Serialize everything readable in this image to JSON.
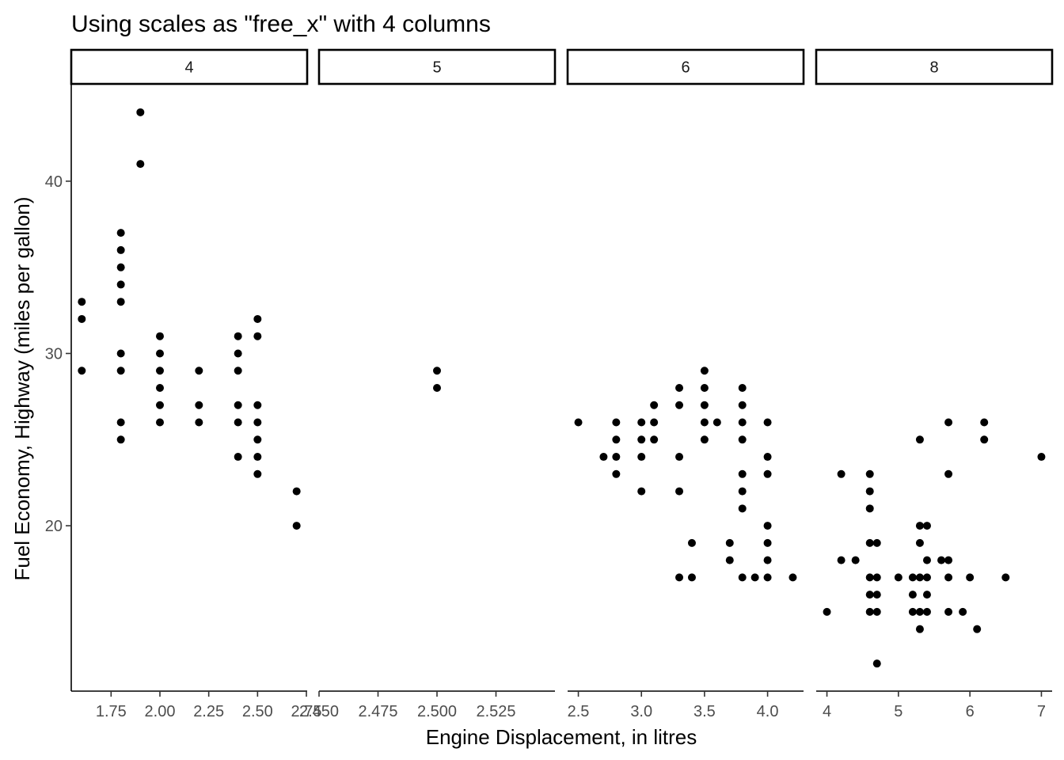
{
  "chart_data": {
    "type": "scatter",
    "title": "Using scales as \"free_x\" with 4 columns",
    "xlabel": "Engine Displacement, in litres",
    "ylabel": "Fuel Economy, Highway (miles per gallon)",
    "facet_variable": "cyl",
    "scales": "free_x",
    "ncol": 4,
    "ylim": [
      10.4,
      45.6
    ],
    "y_ticks": [
      20,
      30,
      40
    ],
    "y_tick_labels": [
      "20",
      "30",
      "40"
    ],
    "panels": [
      {
        "strip_label": "4",
        "xlim": [
          1.546,
          2.754
        ],
        "x_ticks": [
          1.75,
          2.0,
          2.25,
          2.5,
          2.75
        ],
        "x_tick_labels": [
          "1.75",
          "2.00",
          "2.25",
          "2.50",
          "2.75"
        ],
        "points": [
          [
            1.6,
            33
          ],
          [
            1.6,
            32
          ],
          [
            1.6,
            29
          ],
          [
            1.8,
            37
          ],
          [
            1.8,
            36
          ],
          [
            1.8,
            35
          ],
          [
            1.8,
            34
          ],
          [
            1.8,
            33
          ],
          [
            1.8,
            30
          ],
          [
            1.8,
            29
          ],
          [
            1.8,
            26
          ],
          [
            1.8,
            25
          ],
          [
            1.9,
            44
          ],
          [
            1.9,
            41
          ],
          [
            2.0,
            31
          ],
          [
            2.0,
            30
          ],
          [
            2.0,
            29
          ],
          [
            2.0,
            28
          ],
          [
            2.0,
            27
          ],
          [
            2.0,
            26
          ],
          [
            2.2,
            29
          ],
          [
            2.2,
            27
          ],
          [
            2.2,
            26
          ],
          [
            2.4,
            31
          ],
          [
            2.4,
            30
          ],
          [
            2.4,
            29
          ],
          [
            2.4,
            27
          ],
          [
            2.4,
            26
          ],
          [
            2.4,
            24
          ],
          [
            2.5,
            32
          ],
          [
            2.5,
            31
          ],
          [
            2.5,
            27
          ],
          [
            2.5,
            26
          ],
          [
            2.5,
            25
          ],
          [
            2.5,
            24
          ],
          [
            2.5,
            23
          ],
          [
            2.7,
            22
          ],
          [
            2.7,
            20
          ]
        ]
      },
      {
        "strip_label": "5",
        "xlim": [
          2.45,
          2.55
        ],
        "x_ticks": [
          2.45,
          2.475,
          2.5,
          2.525
        ],
        "x_tick_labels": [
          "2.450",
          "2.475",
          "2.500",
          "2.525"
        ],
        "points": [
          [
            2.5,
            29
          ],
          [
            2.5,
            28
          ]
        ]
      },
      {
        "strip_label": "6",
        "xlim": [
          2.415,
          4.285
        ],
        "x_ticks": [
          2.5,
          3.0,
          3.5,
          4.0
        ],
        "x_tick_labels": [
          "2.5",
          "3.0",
          "3.5",
          "4.0"
        ],
        "points": [
          [
            2.5,
            26
          ],
          [
            2.7,
            24
          ],
          [
            2.8,
            26
          ],
          [
            2.8,
            25
          ],
          [
            2.8,
            24
          ],
          [
            2.8,
            23
          ],
          [
            3.0,
            26
          ],
          [
            3.0,
            25
          ],
          [
            3.0,
            24
          ],
          [
            3.0,
            22
          ],
          [
            3.1,
            27
          ],
          [
            3.1,
            26
          ],
          [
            3.1,
            25
          ],
          [
            3.3,
            28
          ],
          [
            3.3,
            27
          ],
          [
            3.3,
            24
          ],
          [
            3.3,
            22
          ],
          [
            3.3,
            17
          ],
          [
            3.4,
            19
          ],
          [
            3.4,
            17
          ],
          [
            3.5,
            29
          ],
          [
            3.5,
            28
          ],
          [
            3.5,
            27
          ],
          [
            3.5,
            26
          ],
          [
            3.5,
            25
          ],
          [
            3.6,
            26
          ],
          [
            3.7,
            19
          ],
          [
            3.7,
            18
          ],
          [
            3.8,
            28
          ],
          [
            3.8,
            27
          ],
          [
            3.8,
            26
          ],
          [
            3.8,
            25
          ],
          [
            3.8,
            23
          ],
          [
            3.8,
            22
          ],
          [
            3.8,
            21
          ],
          [
            3.8,
            17
          ],
          [
            3.9,
            17
          ],
          [
            4.0,
            26
          ],
          [
            4.0,
            24
          ],
          [
            4.0,
            23
          ],
          [
            4.0,
            20
          ],
          [
            4.0,
            19
          ],
          [
            4.0,
            18
          ],
          [
            4.0,
            17
          ],
          [
            4.2,
            17
          ]
        ]
      },
      {
        "strip_label": "8",
        "xlim": [
          3.85,
          7.15
        ],
        "x_ticks": [
          4,
          5,
          6,
          7
        ],
        "x_tick_labels": [
          "4",
          "5",
          "6",
          "7"
        ],
        "points": [
          [
            4.0,
            15
          ],
          [
            4.2,
            23
          ],
          [
            4.2,
            18
          ],
          [
            4.4,
            18
          ],
          [
            4.6,
            23
          ],
          [
            4.6,
            22
          ],
          [
            4.6,
            21
          ],
          [
            4.6,
            19
          ],
          [
            4.6,
            17
          ],
          [
            4.6,
            16
          ],
          [
            4.6,
            15
          ],
          [
            4.7,
            19
          ],
          [
            4.7,
            17
          ],
          [
            4.7,
            16
          ],
          [
            4.7,
            15
          ],
          [
            4.7,
            12
          ],
          [
            5.0,
            17
          ],
          [
            5.2,
            17
          ],
          [
            5.2,
            16
          ],
          [
            5.2,
            15
          ],
          [
            5.3,
            25
          ],
          [
            5.3,
            20
          ],
          [
            5.3,
            19
          ],
          [
            5.3,
            17
          ],
          [
            5.3,
            15
          ],
          [
            5.3,
            14
          ],
          [
            5.4,
            20
          ],
          [
            5.4,
            18
          ],
          [
            5.4,
            17
          ],
          [
            5.4,
            16
          ],
          [
            5.4,
            15
          ],
          [
            5.6,
            18
          ],
          [
            5.7,
            26
          ],
          [
            5.7,
            23
          ],
          [
            5.7,
            18
          ],
          [
            5.7,
            17
          ],
          [
            5.7,
            15
          ],
          [
            5.9,
            15
          ],
          [
            6.0,
            17
          ],
          [
            6.1,
            14
          ],
          [
            6.2,
            26
          ],
          [
            6.2,
            25
          ],
          [
            6.5,
            17
          ],
          [
            7.0,
            24
          ]
        ]
      }
    ]
  }
}
